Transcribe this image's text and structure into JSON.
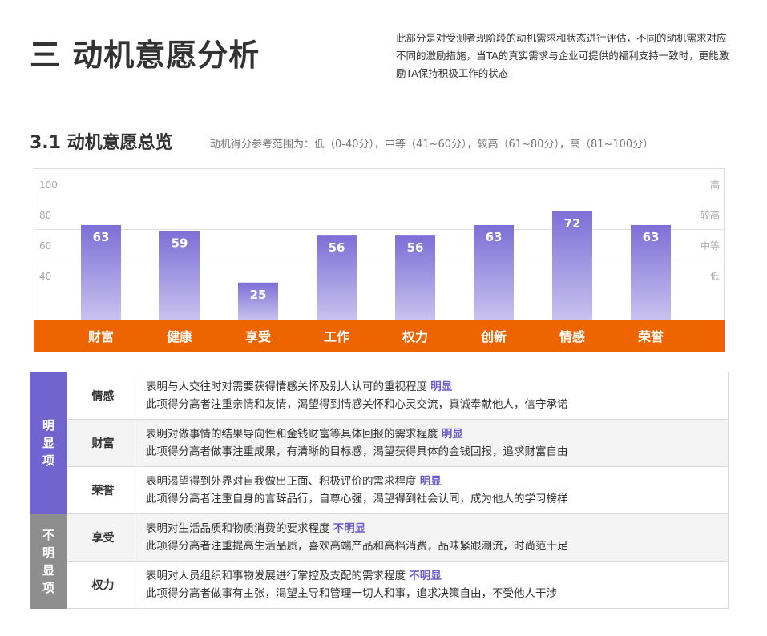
{
  "header": {
    "title": "三 动机意愿分析",
    "intro": "此部分是对受测者现阶段的动机需求和状态进行评估，不同的动机需求对应不同的激励措施，当TA的真实需求与企业可提供的福利支持一致时，更能激励TA保持积极工作的状态"
  },
  "section": {
    "title": "3.1 动机意愿总览",
    "reference": "动机得分参考范围为：低（0-40分），中等（41~60分），较高（61~80分），高（81~100分）"
  },
  "chart_data": {
    "type": "bar",
    "categories": [
      "财富",
      "健康",
      "享受",
      "工作",
      "权力",
      "创新",
      "情感",
      "荣誉"
    ],
    "values": [
      63,
      59,
      25,
      56,
      56,
      63,
      72,
      63
    ],
    "ylim": [
      0,
      100
    ],
    "y_ticks": [
      "100",
      "80",
      "60",
      "40"
    ],
    "y_tick_values": [
      100,
      80,
      60,
      40
    ],
    "level_labels": [
      "高",
      "较高",
      "中等",
      "低"
    ],
    "level_values": [
      100,
      80,
      60,
      40
    ],
    "grid": true,
    "colors": {
      "bar_top": "#7d6fd6",
      "bar_bottom": "#c9c2ef",
      "category_band": "#ee6400",
      "gridline": "#e3e3e3",
      "tick_text": "#aaaaaa"
    }
  },
  "table": {
    "groups": [
      {
        "label": "明显项",
        "color": "#7264cf",
        "rows": [
          {
            "name": "情感",
            "line1": "表明与人交往时对需要获得情感关怀及别人认可的重视程度",
            "tag": "明显",
            "line2": "此项得分高者注重亲情和友情，渴望得到情感关怀和心灵交流，真诚奉献他人，信守承诺"
          },
          {
            "name": "财富",
            "line1": "表明对做事情的结果导向性和金钱财富等具体回报的需求程度",
            "tag": "明显",
            "line2": "此项得分高者做事注重成果，有清晰的目标感，渴望获得具体的金钱回报，追求财富自由"
          },
          {
            "name": "荣誉",
            "line1": "表明渴望得到外界对自我做出正面、积极评价的需求程度",
            "tag": "明显",
            "line2": "此项得分高者注重自身的言辞品行，自尊心强，渴望得到社会认同，成为他人的学习榜样"
          }
        ]
      },
      {
        "label": "不明显项",
        "color": "#8e8e8e",
        "rows": [
          {
            "name": "享受",
            "line1": "表明对生活品质和物质消费的要求程度",
            "tag": "不明显",
            "line2": "此项得分高者注重提高生活品质，喜欢高端产品和高档消费，品味紧跟潮流，时尚范十足"
          },
          {
            "name": "权力",
            "line1": "表明对人员组织和事物发展进行掌控及支配的需求程度",
            "tag": "不明显",
            "line2": "此项得分高者做事有主张，渴望主导和管理一切人和事，追求决策自由，不受他人干涉"
          }
        ]
      }
    ]
  }
}
